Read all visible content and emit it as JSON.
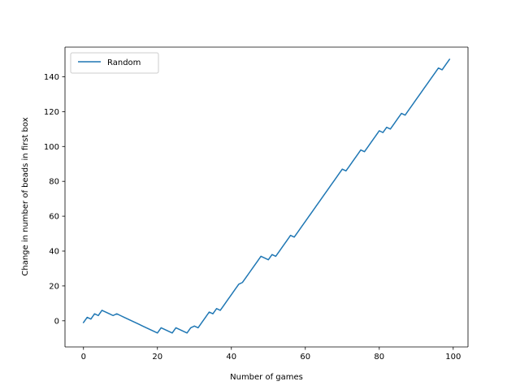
{
  "chart_data": {
    "type": "line",
    "title": "",
    "xlabel": "Number of games",
    "ylabel": "Change in number of beads in first box",
    "xlim": [
      -5,
      104
    ],
    "ylim": [
      -15,
      157
    ],
    "xticks": [
      0,
      20,
      40,
      60,
      80,
      100
    ],
    "yticks": [
      0,
      20,
      40,
      60,
      80,
      100,
      120,
      140
    ],
    "grid": false,
    "legend": "top-left",
    "series": [
      {
        "name": "Random",
        "color": "#1f77b4",
        "x": [
          0,
          1,
          2,
          3,
          4,
          5,
          6,
          7,
          8,
          9,
          10,
          11,
          12,
          13,
          14,
          15,
          16,
          17,
          18,
          19,
          20,
          21,
          22,
          23,
          24,
          25,
          26,
          27,
          28,
          29,
          30,
          31,
          32,
          33,
          34,
          35,
          36,
          37,
          38,
          39,
          40,
          41,
          42,
          43,
          44,
          45,
          46,
          47,
          48,
          49,
          50,
          51,
          52,
          53,
          54,
          55,
          56,
          57,
          58,
          59,
          60,
          61,
          62,
          63,
          64,
          65,
          66,
          67,
          68,
          69,
          70,
          71,
          72,
          73,
          74,
          75,
          76,
          77,
          78,
          79,
          80,
          81,
          82,
          83,
          84,
          85,
          86,
          87,
          88,
          89,
          90,
          91,
          92,
          93,
          94,
          95,
          96,
          97,
          98,
          99
        ],
        "y": [
          -1,
          2,
          1,
          4,
          3,
          6,
          5,
          4,
          3,
          4,
          3,
          2,
          1,
          0,
          -1,
          -2,
          -3,
          -4,
          -5,
          -6,
          -7,
          -4,
          -5,
          -6,
          -7,
          -4,
          -5,
          -6,
          -7,
          -4,
          -3,
          -4,
          -1,
          2,
          5,
          4,
          7,
          6,
          9,
          12,
          15,
          18,
          21,
          22,
          25,
          28,
          31,
          34,
          37,
          36,
          35,
          38,
          37,
          40,
          43,
          46,
          49,
          48,
          51,
          54,
          57,
          60,
          63,
          66,
          69,
          72,
          75,
          78,
          81,
          84,
          87,
          86,
          89,
          92,
          95,
          98,
          97,
          100,
          103,
          106,
          109,
          108,
          111,
          110,
          113,
          116,
          119,
          118,
          121,
          124,
          127,
          130,
          133,
          136,
          139,
          142,
          145,
          144,
          147,
          150
        ]
      }
    ]
  }
}
